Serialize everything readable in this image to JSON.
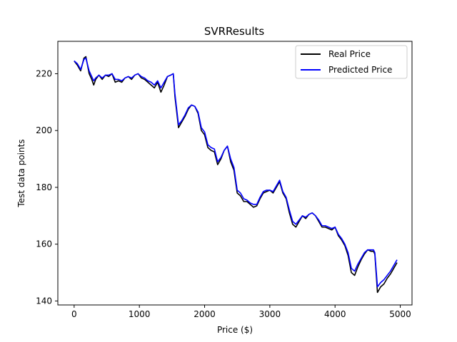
{
  "chart_data": {
    "type": "line",
    "title": "SVRResults",
    "xlabel": "Price ($)",
    "ylabel": "Test data points",
    "xlim": [
      -250,
      5180
    ],
    "ylim": [
      138.6,
      231.4
    ],
    "xticks": [
      0,
      1000,
      2000,
      3000,
      4000,
      5000
    ],
    "yticks": [
      140,
      160,
      180,
      200,
      220
    ],
    "legend_position": "top-right",
    "grid": false,
    "series": [
      {
        "name": "Real Price",
        "color": "#000000",
        "x": [
          0,
          50,
          100,
          150,
          180,
          230,
          270,
          300,
          330,
          380,
          430,
          480,
          530,
          580,
          630,
          680,
          730,
          780,
          830,
          880,
          930,
          980,
          1030,
          1080,
          1130,
          1180,
          1230,
          1280,
          1330,
          1380,
          1430,
          1480,
          1520,
          1545,
          1570,
          1600,
          1650,
          1700,
          1750,
          1800,
          1850,
          1900,
          1950,
          2000,
          2050,
          2100,
          2150,
          2200,
          2250,
          2300,
          2350,
          2400,
          2450,
          2500,
          2550,
          2600,
          2650,
          2700,
          2750,
          2800,
          2850,
          2900,
          2950,
          3000,
          3050,
          3100,
          3150,
          3200,
          3250,
          3300,
          3350,
          3400,
          3450,
          3500,
          3550,
          3600,
          3650,
          3700,
          3750,
          3800,
          3850,
          3900,
          3950,
          4000,
          4050,
          4100,
          4150,
          4200,
          4250,
          4300,
          4350,
          4400,
          4450,
          4500,
          4550,
          4590,
          4610,
          4650,
          4700,
          4750,
          4800,
          4850,
          4900,
          4950
        ],
        "values": [
          224.5,
          223.0,
          221.0,
          225.5,
          226.0,
          220.0,
          218.0,
          216.0,
          218.0,
          219.5,
          218.0,
          219.5,
          219.0,
          220.0,
          217.0,
          217.5,
          217.0,
          218.5,
          219.0,
          218.0,
          219.5,
          220.0,
          218.5,
          218.0,
          217.0,
          216.0,
          215.0,
          217.0,
          213.5,
          216.0,
          219.0,
          219.5,
          220.0,
          212.0,
          207.0,
          201.0,
          203.0,
          205.0,
          207.5,
          209.0,
          208.5,
          206.0,
          200.0,
          198.5,
          194.0,
          193.0,
          192.5,
          188.0,
          190.0,
          193.0,
          194.5,
          189.0,
          186.0,
          178.0,
          177.0,
          175.0,
          175.0,
          174.0,
          173.0,
          173.5,
          176.0,
          178.0,
          178.5,
          179.0,
          178.0,
          180.0,
          182.0,
          178.0,
          176.0,
          171.0,
          167.0,
          166.0,
          168.0,
          170.0,
          169.0,
          170.5,
          171.0,
          170.0,
          168.0,
          166.0,
          166.0,
          165.5,
          165.0,
          166.0,
          163.0,
          161.5,
          159.5,
          156.0,
          150.0,
          149.0,
          152.0,
          154.5,
          156.5,
          158.0,
          157.5,
          157.5,
          156.5,
          143.0,
          145.0,
          146.0,
          148.0,
          149.5,
          151.5,
          153.5
        ]
      },
      {
        "name": "Predicted Price",
        "color": "#0000ff",
        "x": [
          0,
          50,
          100,
          150,
          180,
          230,
          270,
          300,
          330,
          380,
          430,
          480,
          530,
          580,
          630,
          680,
          730,
          780,
          830,
          880,
          930,
          980,
          1030,
          1080,
          1130,
          1180,
          1230,
          1280,
          1330,
          1380,
          1430,
          1480,
          1520,
          1545,
          1570,
          1600,
          1650,
          1700,
          1750,
          1800,
          1850,
          1900,
          1950,
          2000,
          2050,
          2100,
          2150,
          2200,
          2250,
          2300,
          2350,
          2400,
          2450,
          2500,
          2550,
          2600,
          2650,
          2700,
          2750,
          2800,
          2850,
          2900,
          2950,
          3000,
          3050,
          3100,
          3150,
          3200,
          3250,
          3300,
          3350,
          3400,
          3450,
          3500,
          3550,
          3600,
          3650,
          3700,
          3750,
          3800,
          3850,
          3900,
          3950,
          4000,
          4050,
          4100,
          4150,
          4200,
          4250,
          4300,
          4350,
          4400,
          4450,
          4500,
          4550,
          4590,
          4610,
          4650,
          4700,
          4750,
          4800,
          4850,
          4900,
          4950
        ],
        "values": [
          224.5,
          223.5,
          221.5,
          225.0,
          225.5,
          221.0,
          219.0,
          217.5,
          218.5,
          219.5,
          218.5,
          219.5,
          219.5,
          220.0,
          218.0,
          218.0,
          217.5,
          218.5,
          219.0,
          218.5,
          219.5,
          220.0,
          219.0,
          218.5,
          217.5,
          217.0,
          216.0,
          217.5,
          215.0,
          217.0,
          219.0,
          219.5,
          220.0,
          213.0,
          208.0,
          202.0,
          203.5,
          205.5,
          208.0,
          209.0,
          208.5,
          206.5,
          201.0,
          199.5,
          195.0,
          194.0,
          193.5,
          189.0,
          190.5,
          193.0,
          194.5,
          190.0,
          187.0,
          179.0,
          178.0,
          176.0,
          175.5,
          174.5,
          174.0,
          174.0,
          176.5,
          178.5,
          179.0,
          179.0,
          178.5,
          180.5,
          182.5,
          178.5,
          176.5,
          172.0,
          168.0,
          167.0,
          168.5,
          170.0,
          169.5,
          170.5,
          171.0,
          170.0,
          168.5,
          166.5,
          166.5,
          166.0,
          165.5,
          166.0,
          163.5,
          162.0,
          160.0,
          157.0,
          151.5,
          150.5,
          153.0,
          155.0,
          157.0,
          158.0,
          158.0,
          158.0,
          157.0,
          145.0,
          146.5,
          147.5,
          149.0,
          150.5,
          152.5,
          154.5
        ]
      }
    ]
  }
}
